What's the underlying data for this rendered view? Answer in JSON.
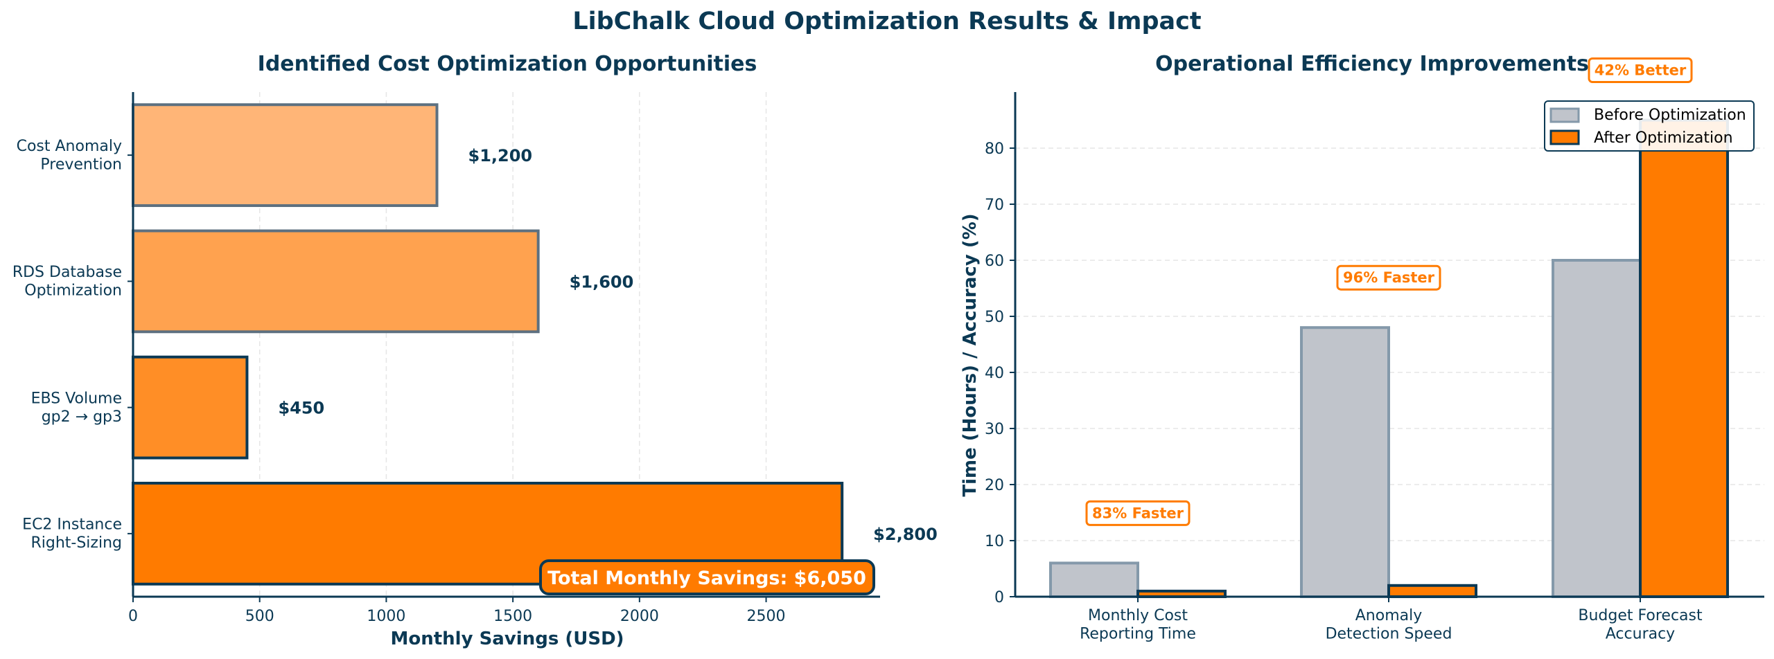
{
  "page": {
    "title": "LibChalk Cloud Optimization Results & Impact"
  },
  "colors": {
    "navy": "#0b3954",
    "orange": "#ff7b00",
    "gray_bar": "#c0c4cb",
    "gray_edge": "#8499aa",
    "grid": "#e6e6e6"
  },
  "chart_data": [
    {
      "type": "bar",
      "orientation": "horizontal",
      "title": "Identified Cost Optimization Opportunities",
      "xlabel": "Monthly Savings (USD)",
      "ylabel": "",
      "xlim": [
        0,
        2950
      ],
      "xticks": [
        0,
        500,
        1000,
        1500,
        2000,
        2500
      ],
      "grid": true,
      "categories": [
        [
          "EC2 Instance",
          "Right-Sizing"
        ],
        [
          "EBS Volume",
          "gp2 → gp3"
        ],
        [
          "RDS Database",
          "Optimization"
        ],
        [
          "Cost Anomaly",
          "Prevention"
        ]
      ],
      "values": [
        2800,
        450,
        1600,
        1200
      ],
      "value_labels": [
        "$2,800",
        "$450",
        "$1,600",
        "$1,200"
      ],
      "bar_colors": [
        "#ff7b00",
        "#ff8e26",
        "#ffa24f",
        "#ffb577"
      ],
      "edge_colors": [
        "#0b3954",
        "#0b3954",
        "#5d7080",
        "#5d7080"
      ],
      "annotation": "Total Monthly Savings: $6,050"
    },
    {
      "type": "bar",
      "title": "Operational Efficiency Improvements",
      "xlabel": "",
      "ylabel": "Time (Hours) / Accuracy (%)",
      "ylim": [
        0,
        90
      ],
      "yticks": [
        0,
        10,
        20,
        30,
        40,
        50,
        60,
        70,
        80
      ],
      "grid": true,
      "legend_position": "top-right",
      "categories": [
        [
          "Monthly Cost",
          "Reporting Time"
        ],
        [
          "Anomaly",
          "Detection Speed"
        ],
        [
          "Budget Forecast",
          "Accuracy"
        ]
      ],
      "series": [
        {
          "name": "Before Optimization",
          "values": [
            6,
            48,
            60
          ]
        },
        {
          "name": "After Optimization",
          "values": [
            1,
            2,
            85
          ]
        }
      ],
      "annotations": [
        "83% Faster",
        "96% Faster",
        "42% Better"
      ]
    }
  ]
}
